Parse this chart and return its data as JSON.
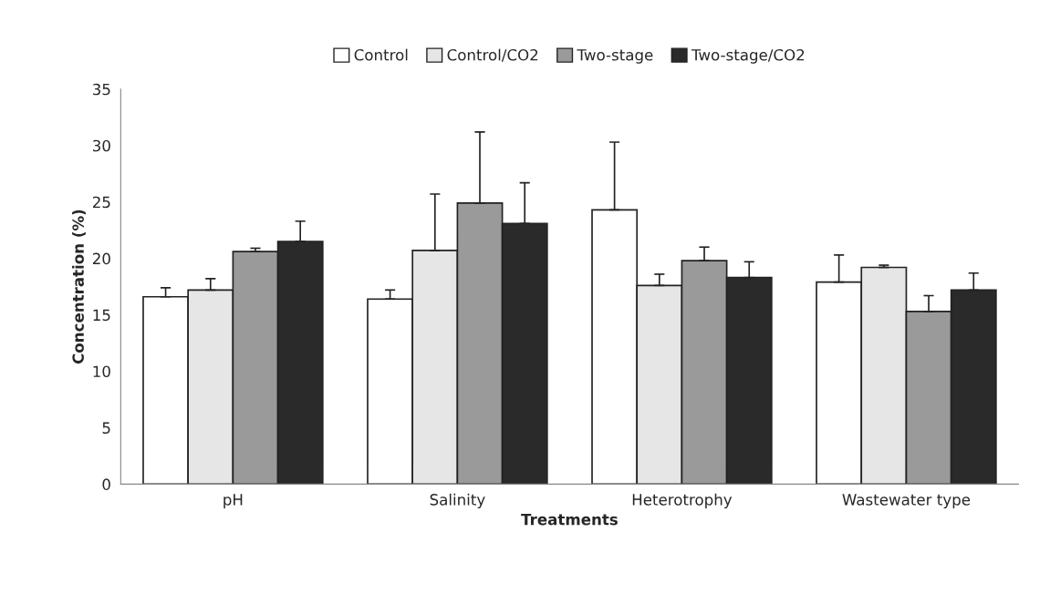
{
  "chart_data": {
    "type": "bar",
    "xlabel": "Treatments",
    "ylabel": "Concentration (%)",
    "categories": [
      "pH",
      "Salinity",
      "Heterotrophy",
      "Wastewater type"
    ],
    "series": [
      {
        "name": "Control",
        "color": "#ffffff",
        "values": [
          16.6,
          16.4,
          24.3,
          17.9
        ],
        "errors": [
          [
            16.6,
            17.4
          ],
          [
            16.4,
            17.2
          ],
          [
            24.3,
            30.3
          ],
          [
            17.9,
            20.3
          ]
        ]
      },
      {
        "name": "Control/CO2",
        "color": "#e6e6e6",
        "values": [
          17.2,
          20.7,
          17.6,
          19.2
        ],
        "errors": [
          [
            17.2,
            18.2
          ],
          [
            20.7,
            25.7
          ],
          [
            17.6,
            18.6
          ],
          [
            19.2,
            19.4
          ]
        ]
      },
      {
        "name": "Two-stage",
        "color": "#9a9a9a",
        "values": [
          20.6,
          24.9,
          19.8,
          15.3
        ],
        "errors": [
          [
            20.6,
            20.9
          ],
          [
            24.9,
            31.2
          ],
          [
            19.8,
            21.0
          ],
          [
            15.3,
            16.7
          ]
        ]
      },
      {
        "name": "Two-stage/CO2",
        "color": "#2a2a2a",
        "values": [
          21.5,
          23.1,
          18.3,
          17.2
        ],
        "errors": [
          [
            21.5,
            23.3
          ],
          [
            23.1,
            26.7
          ],
          [
            18.3,
            19.7
          ],
          [
            17.2,
            18.7
          ]
        ]
      }
    ],
    "ylim": [
      0,
      35
    ],
    "yticks": [
      0,
      5,
      10,
      15,
      20,
      25,
      30,
      35
    ],
    "grid": false,
    "legend": "top"
  }
}
